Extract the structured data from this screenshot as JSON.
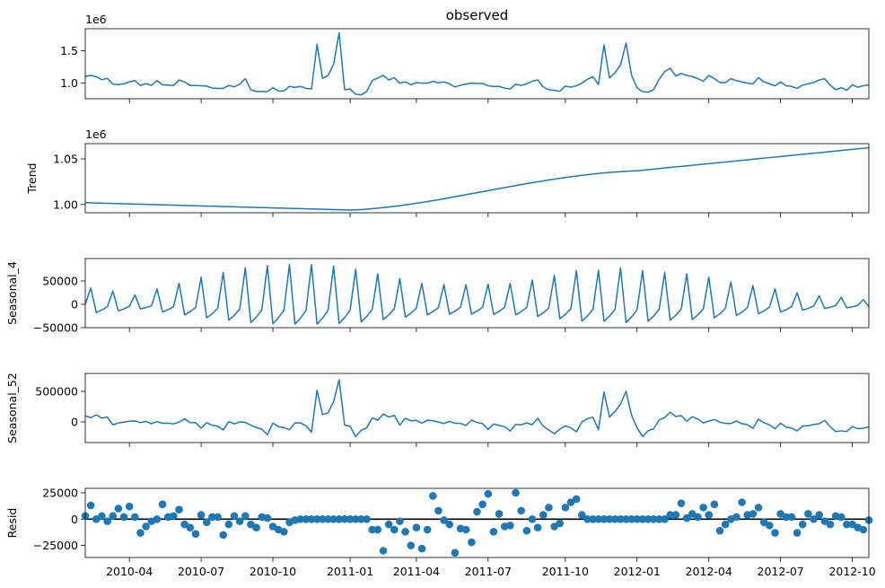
{
  "chart_data": [
    {
      "type": "line",
      "title": "observed",
      "offset": "1e6",
      "color": "#1f77b4",
      "values": [
        1105000,
        1120000,
        1100000,
        1055000,
        1075000,
        985000,
        980000,
        990000,
        1020000,
        1040000,
        965000,
        995000,
        965000,
        1040000,
        975000,
        970000,
        965000,
        1050000,
        1020000,
        965000,
        965000,
        960000,
        955000,
        925000,
        920000,
        920000,
        965000,
        945000,
        985000,
        1070000,
        900000,
        870000,
        870000,
        870000,
        930000,
        880000,
        880000,
        950000,
        935000,
        950000,
        920000,
        910000,
        1600000,
        1075000,
        1120000,
        1290000,
        1780000,
        900000,
        910000,
        830000,
        820000,
        870000,
        1040000,
        1080000,
        1120000,
        1050000,
        1085000,
        1000000,
        1020000,
        975000,
        1010000,
        1000000,
        1000000,
        1030000,
        1005000,
        1020000,
        990000,
        940000,
        970000,
        985000,
        1000000,
        995000,
        995000,
        960000,
        950000,
        950000,
        925000,
        910000,
        985000,
        965000,
        990000,
        1030000,
        1050000,
        940000,
        900000,
        890000,
        875000,
        955000,
        940000,
        960000,
        1000000,
        1060000,
        1100000,
        980000,
        1590000,
        1080000,
        1160000,
        1280000,
        1620000,
        1120000,
        930000,
        870000,
        860000,
        900000,
        1060000,
        1180000,
        1230000,
        1110000,
        1150000,
        1120000,
        1100000,
        1070000,
        1030000,
        1120000,
        1070000,
        1010000,
        1010000,
        1070000,
        1040000,
        1020000,
        1000000,
        990000,
        1085000,
        1020000,
        990000,
        960000,
        1020000,
        960000,
        950000,
        920000,
        970000,
        990000,
        1010000,
        1050000,
        1070000,
        970000,
        900000,
        930000,
        890000,
        975000,
        940000,
        960000,
        975000
      ],
      "ylim": [
        760000,
        1840000
      ],
      "yticks": [
        {
          "value": 1000000,
          "label": "1.0"
        },
        {
          "value": 1500000,
          "label": "1.5"
        }
      ]
    },
    {
      "type": "line",
      "ylabel": "Trend",
      "offset": "1e6",
      "color": "#1f77b4",
      "values": [
        1002000,
        1001800,
        1001700,
        1001500,
        1001300,
        1001200,
        1001000,
        1000800,
        1000700,
        1000500,
        1000300,
        1000200,
        1000000,
        999800,
        999700,
        999500,
        999300,
        999200,
        999000,
        998800,
        998700,
        998500,
        998300,
        998200,
        998000,
        997800,
        997700,
        997500,
        997300,
        997200,
        997000,
        996800,
        996700,
        996500,
        996300,
        996200,
        996000,
        995800,
        995700,
        995500,
        995300,
        995200,
        995000,
        994800,
        994700,
        994500,
        994300,
        994200,
        994000,
        994200,
        994500,
        994900,
        995400,
        996000,
        996600,
        997300,
        998000,
        998800,
        999600,
        1000500,
        1001400,
        1002300,
        1003300,
        1004300,
        1005300,
        1006400,
        1007500,
        1008600,
        1009700,
        1010800,
        1011900,
        1013000,
        1014100,
        1015200,
        1016300,
        1017400,
        1018500,
        1019600,
        1020700,
        1021800,
        1022900,
        1023900,
        1024900,
        1025900,
        1026900,
        1027800,
        1028700,
        1029600,
        1030400,
        1031200,
        1032000,
        1032700,
        1033400,
        1034000,
        1034600,
        1035100,
        1035600,
        1036000,
        1036400,
        1036700,
        1037000,
        1037600,
        1038200,
        1038800,
        1039400,
        1040000,
        1040600,
        1041200,
        1041800,
        1042400,
        1043000,
        1043600,
        1044200,
        1044800,
        1045400,
        1046000,
        1046600,
        1047200,
        1047800,
        1048400,
        1049000,
        1049600,
        1050200,
        1050800,
        1051400,
        1052000,
        1052600,
        1053200,
        1053800,
        1054400,
        1055000,
        1055600,
        1056200,
        1056800,
        1057400,
        1058000,
        1058600,
        1059200,
        1059800,
        1060400,
        1061000,
        1061600,
        1062200
      ],
      "ylim": [
        991000,
        1066700
      ],
      "yticks": [
        {
          "value": 1000000,
          "label": "1.00"
        },
        {
          "value": 1050000,
          "label": "1.05"
        }
      ]
    },
    {
      "type": "line",
      "ylabel": "Seasonal_4",
      "color": "#1f77b4",
      "values": [
        0,
        35000,
        -17500,
        -12250,
        -5250,
        28000,
        -14000,
        -9800,
        -4200,
        20000,
        -10000,
        -7000,
        -3000,
        33000,
        -16500,
        -11550,
        -4950,
        45000,
        -22500,
        -15750,
        -6750,
        58000,
        -29000,
        -20300,
        -8700,
        68000,
        -34000,
        -23800,
        -10200,
        78000,
        -39000,
        -27300,
        -11700,
        83000,
        -41500,
        -29050,
        -12450,
        85000,
        -42500,
        -29750,
        -12750,
        85000,
        -42500,
        -29750,
        -12750,
        82000,
        -41000,
        -28700,
        -12300,
        75000,
        -37500,
        -26250,
        -11250,
        65000,
        -32500,
        -22750,
        -9750,
        55000,
        -27500,
        -19250,
        -8250,
        45000,
        -22500,
        -15750,
        -6750,
        42000,
        -21000,
        -14700,
        -6300,
        42000,
        -21000,
        -14700,
        -6300,
        43000,
        -21500,
        -15050,
        -6450,
        45000,
        -22500,
        -15750,
        -6750,
        52000,
        -26000,
        -18200,
        -7800,
        62000,
        -31000,
        -21700,
        -9300,
        72000,
        -36000,
        -25200,
        -10800,
        73000,
        -36500,
        -25550,
        -10950,
        78000,
        -39000,
        -27300,
        -11700,
        72000,
        -36000,
        -25200,
        -10800,
        68000,
        -34000,
        -23800,
        -10200,
        65000,
        -32500,
        -22750,
        -9750,
        58000,
        -29000,
        -20300,
        -8700,
        48000,
        -24000,
        -16800,
        -7200,
        40000,
        -20000,
        -14000,
        -6000,
        33000,
        -16500,
        -11550,
        -4950,
        25000,
        -12500,
        -8750,
        -3750,
        18000,
        -9000,
        -6300,
        -2700,
        15000,
        -7500,
        -5250,
        -2250,
        10000,
        -5000
      ],
      "ylim": [
        -50000,
        98000
      ],
      "yticks": [
        {
          "value": -50000,
          "label": "−50000"
        },
        0,
        50000
      ]
    },
    {
      "type": "line",
      "ylabel": "Seasonal_52",
      "color": "#1f77b4",
      "values": [
        100000,
        70000,
        116000,
        63000,
        81000,
        -47000,
        -17000,
        -3000,
        12000,
        18000,
        -12000,
        9000,
        -30000,
        7000,
        -22000,
        -20000,
        -32000,
        -3000,
        49000,
        -10000,
        -13000,
        -101000,
        -11000,
        -55000,
        -71000,
        -131000,
        6000,
        -32000,
        0,
        -8000,
        -53000,
        -92000,
        -117000,
        -211000,
        -18000,
        -77000,
        -92000,
        -128000,
        -17000,
        -16000,
        -63000,
        -170000,
        520000,
        120000,
        150000,
        330000,
        690000,
        -50000,
        -72000,
        -239000,
        -137000,
        -99000,
        66000,
        29000,
        130000,
        80000,
        107000,
        -52000,
        60000,
        19000,
        25000,
        -19000,
        29000,
        19000,
        -2000,
        -27000,
        9000,
        -22000,
        -24000,
        -58000,
        31000,
        -10000,
        -27000,
        -122000,
        -33000,
        -57000,
        -80000,
        -149000,
        -38000,
        -49000,
        -15000,
        -46000,
        59000,
        -72000,
        -130000,
        -193000,
        -119000,
        -64000,
        -97000,
        -162000,
        0,
        53000,
        77000,
        -127000,
        490000,
        80000,
        170000,
        290000,
        500000,
        110000,
        -96000,
        -240000,
        -142000,
        -114000,
        31000,
        72000,
        160000,
        89000,
        103000,
        12000,
        85000,
        47000,
        -16000,
        13000,
        40000,
        -5000,
        -23000,
        -25000,
        14000,
        -28000,
        -46000,
        -105000,
        44000,
        -14000,
        -49000,
        -112000,
        -21000,
        -84000,
        -101000,
        -146000,
        -68000,
        -62000,
        -42000,
        -29000,
        24000,
        -77000,
        -159000,
        -146000,
        -157000,
        -75000,
        -111000,
        -102000,
        -81000
      ],
      "ylim": [
        -338000,
        794000
      ],
      "yticks": [
        0,
        500000
      ]
    },
    {
      "type": "scatter",
      "ylabel": "Resid",
      "color": "#1f77b4",
      "x": [
        "2010-02",
        "2010-02",
        "2010-02",
        "2010-02",
        "2010-03",
        "2010-03",
        "2010-03",
        "2010-03",
        "2010-04",
        "2010-04",
        "2010-04",
        "2010-04",
        "2010-04",
        "2010-05",
        "2010-05",
        "2010-05",
        "2010-05",
        "2010-06",
        "2010-06",
        "2010-06",
        "2010-06",
        "2010-07",
        "2010-07",
        "2010-07",
        "2010-07",
        "2010-07",
        "2010-08",
        "2010-08",
        "2010-08",
        "2010-08",
        "2010-09",
        "2010-09",
        "2010-09",
        "2010-09",
        "2010-10",
        "2010-10",
        "2010-10",
        "2010-10",
        "2010-10",
        "2010-11",
        "2010-11",
        "2010-11",
        "2010-11",
        "2010-12",
        "2010-12",
        "2010-12",
        "2010-12",
        "2010-12",
        "2011-01",
        "2011-01",
        "2011-01",
        "2011-01",
        "2011-02",
        "2011-02",
        "2011-02",
        "2011-02",
        "2011-03",
        "2011-03",
        "2011-03",
        "2011-03",
        "2011-04",
        "2011-04",
        "2011-04",
        "2011-04",
        "2011-04",
        "2011-05",
        "2011-05",
        "2011-05",
        "2011-05",
        "2011-06",
        "2011-06",
        "2011-06",
        "2011-06",
        "2011-07",
        "2011-07",
        "2011-07",
        "2011-07",
        "2011-07",
        "2011-08",
        "2011-08",
        "2011-08",
        "2011-08",
        "2011-09",
        "2011-09",
        "2011-09",
        "2011-09",
        "2011-09",
        "2011-10",
        "2011-10",
        "2011-10",
        "2011-10",
        "2011-11",
        "2011-11",
        "2011-11",
        "2011-11",
        "2011-12",
        "2011-12",
        "2011-12",
        "2011-12",
        "2011-12",
        "2012-01",
        "2012-01",
        "2012-01",
        "2012-01",
        "2012-02",
        "2012-02",
        "2012-02",
        "2012-02",
        "2012-03",
        "2012-03",
        "2012-03",
        "2012-03",
        "2012-03",
        "2012-04",
        "2012-04",
        "2012-04",
        "2012-04",
        "2012-05",
        "2012-05",
        "2012-05",
        "2012-05",
        "2012-06",
        "2012-06",
        "2012-06",
        "2012-06",
        "2012-06",
        "2012-07",
        "2012-07",
        "2012-07",
        "2012-07",
        "2012-08",
        "2012-08",
        "2012-08",
        "2012-08",
        "2012-08",
        "2012-09",
        "2012-09",
        "2012-09",
        "2012-09",
        "2012-10",
        "2012-10",
        "2012-10",
        "2012-10"
      ],
      "xticks": [
        "2010-04",
        "2010-07",
        "2010-10",
        "2011-01",
        "2011-04",
        "2011-07",
        "2011-10",
        "2012-01",
        "2012-04",
        "2012-07",
        "2012-10"
      ],
      "values": [
        3000,
        13000,
        0,
        3000,
        -2000,
        3000,
        10000,
        2000,
        12000,
        2000,
        -13000,
        -7000,
        -2000,
        0,
        14000,
        2000,
        3000,
        9000,
        -5000,
        -8000,
        -14000,
        4000,
        -3000,
        2000,
        2000,
        -15000,
        -5000,
        3000,
        -2000,
        3000,
        -5000,
        -8000,
        2000,
        1000,
        -7000,
        -10000,
        -12000,
        -3000,
        -1000,
        0,
        0,
        0,
        0,
        0,
        0,
        0,
        0,
        0,
        0,
        0,
        0,
        0,
        -10000,
        -10000,
        -30000,
        -5000,
        -10000,
        -2000,
        -12000,
        -25000,
        -8000,
        -28000,
        -10000,
        22000,
        8000,
        -1000,
        -5000,
        -32000,
        -9000,
        -10000,
        -22000,
        7000,
        14000,
        24000,
        -12000,
        5000,
        -7000,
        -6000,
        25000,
        8000,
        -11000,
        0,
        -8000,
        4000,
        11000,
        -7000,
        -4000,
        11000,
        16000,
        19000,
        4000,
        0,
        0,
        0,
        0,
        0,
        0,
        0,
        0,
        0,
        0,
        0,
        0,
        0,
        0,
        0,
        4000,
        4000,
        15000,
        1000,
        5000,
        2000,
        11000,
        4000,
        14000,
        -11000,
        -5000,
        0,
        2000,
        16000,
        4000,
        5000,
        11000,
        -3000,
        -6000,
        -13000,
        5000,
        2000,
        2000,
        -13000,
        -5000,
        5000,
        0,
        4000,
        -2000,
        -5000,
        3000,
        2000,
        -5000,
        -5000,
        -8000,
        -10000,
        -1000
      ],
      "ylim": [
        -36400,
        29200
      ],
      "yticks": [
        {
          "value": -25000,
          "label": "−25000"
        },
        0,
        25000
      ]
    }
  ]
}
